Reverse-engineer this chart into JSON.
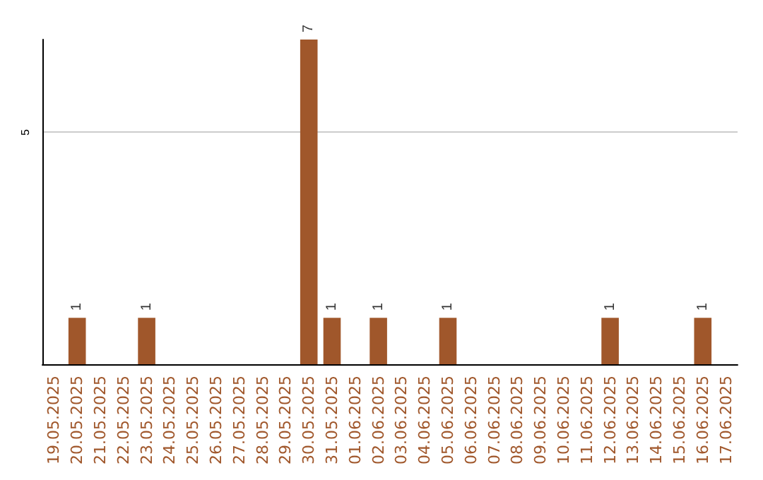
{
  "chart_data": {
    "type": "bar",
    "categories": [
      "19.05.2025",
      "20.05.2025",
      "21.05.2025",
      "22.05.2025",
      "23.05.2025",
      "24.05.2025",
      "25.05.2025",
      "26.05.2025",
      "27.05.2025",
      "28.05.2025",
      "29.05.2025",
      "30.05.2025",
      "31.05.2025",
      "01.06.2025",
      "02.06.2025",
      "03.06.2025",
      "04.06.2025",
      "05.06.2025",
      "06.06.2025",
      "07.06.2025",
      "08.06.2025",
      "09.06.2025",
      "10.06.2025",
      "11.06.2025",
      "12.06.2025",
      "13.06.2025",
      "14.06.2025",
      "15.06.2025",
      "16.06.2025",
      "17.06.2025"
    ],
    "values": [
      0,
      1,
      0,
      0,
      1,
      0,
      0,
      0,
      0,
      0,
      0,
      7,
      1,
      0,
      1,
      0,
      0,
      1,
      0,
      0,
      0,
      0,
      0,
      0,
      1,
      0,
      0,
      0,
      1,
      0
    ],
    "value_labels": [
      null,
      "1",
      null,
      null,
      "1",
      null,
      null,
      null,
      null,
      null,
      null,
      "7",
      "1",
      null,
      "1",
      null,
      null,
      "1",
      null,
      null,
      null,
      null,
      null,
      null,
      "1",
      null,
      null,
      null,
      "1",
      null
    ],
    "color": "#a0572b",
    "ylim": [
      0,
      7
    ],
    "yticks": [
      5
    ],
    "grid": "y"
  }
}
